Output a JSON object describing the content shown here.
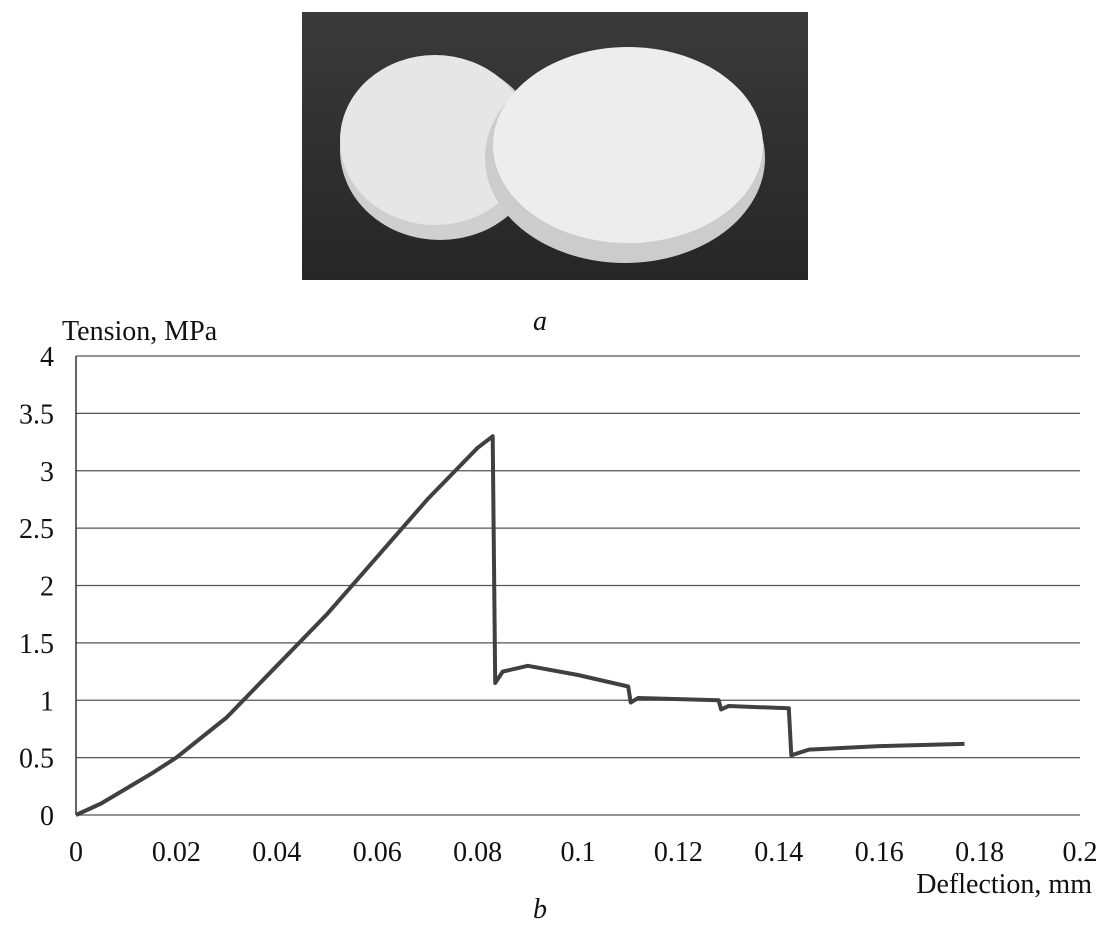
{
  "photo_caption": "a",
  "chart_data": {
    "type": "line",
    "caption": "b",
    "y_label": "Tension, MPa",
    "x_label": "Deflection, mm",
    "x": [
      0,
      0.005,
      0.01,
      0.015,
      0.02,
      0.03,
      0.04,
      0.05,
      0.06,
      0.07,
      0.08,
      0.083,
      0.0835,
      0.085,
      0.09,
      0.1,
      0.11,
      0.1105,
      0.112,
      0.128,
      0.1285,
      0.13,
      0.142,
      0.1425,
      0.146,
      0.16,
      0.177
    ],
    "values": [
      0,
      0.1,
      0.23,
      0.36,
      0.5,
      0.85,
      1.3,
      1.75,
      2.25,
      2.75,
      3.2,
      3.3,
      1.15,
      1.25,
      1.3,
      1.22,
      1.12,
      0.98,
      1.02,
      1.0,
      0.92,
      0.95,
      0.93,
      0.52,
      0.57,
      0.6,
      0.62
    ],
    "color": "#404040",
    "xlim": [
      0,
      0.2
    ],
    "xticks": [
      0,
      0.02,
      0.04,
      0.06,
      0.08,
      0.1,
      0.12,
      0.14,
      0.16,
      0.18,
      0.2
    ],
    "ylim": [
      0,
      4
    ],
    "yticks": [
      0,
      0.5,
      1,
      1.5,
      2,
      2.5,
      3,
      3.5,
      4
    ],
    "grid": true
  }
}
